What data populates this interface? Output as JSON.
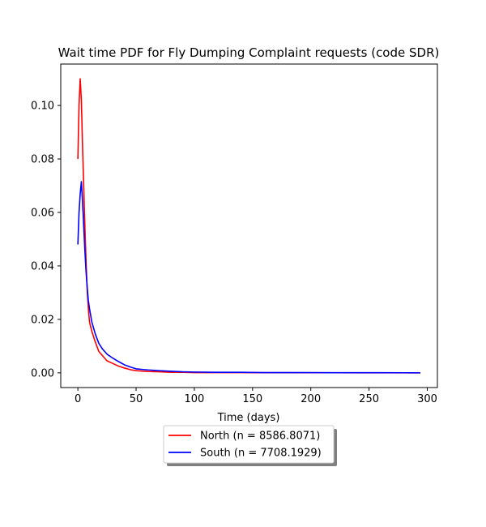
{
  "chart_data": {
    "type": "line",
    "title": "Wait time PDF for Fly Dumping Complaint  requests (code SDR)",
    "xlabel": "Time (days)",
    "ylabel": "",
    "xlim": [
      -14.7,
      308.7
    ],
    "ylim": [
      -0.0055,
      0.1155
    ],
    "xticks": [
      0,
      50,
      100,
      150,
      200,
      250,
      300
    ],
    "yticks": [
      0.0,
      0.02,
      0.04,
      0.06,
      0.08,
      0.1
    ],
    "ytick_labels": [
      "0.00",
      "0.02",
      "0.04",
      "0.06",
      "0.08",
      "0.10"
    ],
    "grid": false,
    "legend": {
      "placement": "below-center",
      "shadow": true
    },
    "series": [
      {
        "name": "North (n = 8586.8071)",
        "color": "#ff0000",
        "x": [
          0,
          1,
          2,
          3,
          4,
          5,
          6,
          7,
          8,
          9,
          10,
          12,
          15,
          18,
          21,
          25,
          30,
          35,
          40,
          45,
          50,
          60,
          70,
          80,
          90,
          100,
          120,
          140,
          160,
          180,
          200,
          220,
          240,
          260,
          280,
          294
        ],
        "y": [
          0.08,
          0.1,
          0.11,
          0.102,
          0.085,
          0.07,
          0.055,
          0.042,
          0.031,
          0.024,
          0.019,
          0.0155,
          0.0115,
          0.008,
          0.0065,
          0.0045,
          0.0035,
          0.0025,
          0.0018,
          0.0012,
          0.0008,
          0.0005,
          0.0004,
          0.0002,
          0.0002,
          0.0001,
          0.0001,
          0.0001,
          5e-05,
          5e-05,
          3e-05,
          3e-05,
          2e-05,
          2e-05,
          1e-05,
          1e-05
        ]
      },
      {
        "name": "South (n = 7708.1929)",
        "color": "#0000ff",
        "x": [
          0,
          1,
          2,
          3,
          4,
          5,
          6,
          7,
          8,
          9,
          10,
          12,
          15,
          18,
          21,
          25,
          30,
          35,
          40,
          45,
          50,
          60,
          70,
          80,
          90,
          100,
          120,
          140,
          160,
          180,
          200,
          220,
          240,
          260,
          280,
          294
        ],
        "y": [
          0.048,
          0.06,
          0.067,
          0.0715,
          0.064,
          0.055,
          0.046,
          0.038,
          0.032,
          0.027,
          0.024,
          0.019,
          0.0145,
          0.011,
          0.009,
          0.007,
          0.0055,
          0.0042,
          0.003,
          0.0022,
          0.0015,
          0.0011,
          0.0008,
          0.0006,
          0.0004,
          0.0003,
          0.0002,
          0.0002,
          0.0001,
          0.0001,
          8e-05,
          6e-05,
          5e-05,
          4e-05,
          3e-05,
          2e-05
        ]
      }
    ]
  }
}
